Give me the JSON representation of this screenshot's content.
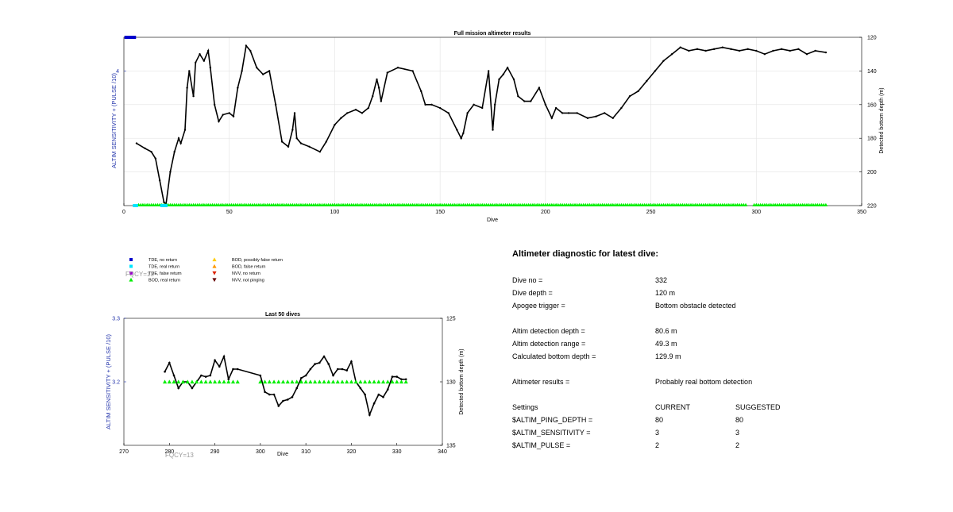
{
  "chart_data": [
    {
      "id": "full",
      "type": "line",
      "title": "Full mission altimeter results",
      "xlabel": "Dive",
      "ylabel_left": "ALTIM SENSITIVITY + (PULSE /10)",
      "ylabel_right": "Detected bottom depth (m)",
      "xlim": [
        0,
        350
      ],
      "xticks": [
        0,
        50,
        100,
        150,
        200,
        250,
        300,
        350
      ],
      "ylim_right": [
        120,
        220
      ],
      "yticks_right": [
        120,
        140,
        160,
        180,
        200,
        220
      ],
      "yticks_left": [
        4
      ],
      "right_axis_reversed": true,
      "grid": true,
      "series": [
        {
          "color": "#000000",
          "marker": "dot",
          "x": [
            6,
            10,
            13,
            15,
            17,
            19,
            20,
            22,
            24,
            26,
            27,
            29,
            30,
            31,
            33,
            34,
            36,
            38,
            40,
            41,
            43,
            45,
            47,
            50,
            52,
            54,
            56,
            58,
            60,
            63,
            66,
            69,
            72,
            75,
            78,
            80,
            81,
            82,
            84,
            88,
            93,
            96,
            100,
            103,
            106,
            110,
            113,
            116,
            118,
            120,
            121,
            122,
            125,
            130,
            137,
            141,
            143,
            146,
            150,
            154,
            158,
            160,
            161,
            163,
            166,
            170,
            173,
            175,
            176,
            178,
            180,
            182,
            185,
            187,
            190,
            193,
            197,
            200,
            203,
            205,
            208,
            211,
            215,
            220,
            224,
            228,
            232,
            236,
            240,
            244,
            248,
            252,
            256,
            260,
            264,
            268,
            272,
            276,
            280,
            284,
            288,
            292,
            296,
            300,
            304,
            308,
            312,
            316,
            320,
            324,
            328,
            333
          ],
          "y": [
            183,
            186,
            188,
            192,
            205,
            218,
            219,
            200,
            188,
            180,
            183,
            175,
            150,
            140,
            155,
            135,
            130,
            134,
            128,
            138,
            160,
            170,
            166,
            165,
            167,
            150,
            140,
            125,
            128,
            138,
            142,
            140,
            160,
            182,
            185,
            175,
            165,
            180,
            183,
            185,
            188,
            182,
            172,
            168,
            165,
            163,
            165,
            162,
            155,
            145,
            150,
            158,
            141,
            138,
            140,
            152,
            160,
            160,
            162,
            165,
            175,
            180,
            177,
            165,
            160,
            162,
            140,
            175,
            160,
            145,
            142,
            138,
            145,
            155,
            158,
            158,
            150,
            160,
            168,
            162,
            165,
            165,
            165,
            168,
            167,
            165,
            168,
            162,
            155,
            152,
            146,
            140,
            134,
            130,
            126,
            128,
            127,
            128,
            127,
            126,
            127,
            128,
            127,
            128,
            130,
            128,
            127,
            128,
            127,
            130,
            128,
            129
          ]
        },
        {
          "name": "BOD, real return",
          "color": "#00ee00",
          "marker": "triangle-up",
          "x_range": [
            7,
            333
          ],
          "y": 220
        },
        {
          "name": "TDE, real return",
          "color": "#00e5ff",
          "marker": "square",
          "x": [
            5,
            6,
            18,
            19,
            20
          ],
          "y": 220
        },
        {
          "name": "TDE, no return",
          "color": "#0000cc",
          "marker": "square",
          "x": [
            1,
            2,
            3,
            4,
            5
          ],
          "y": 120
        }
      ]
    },
    {
      "id": "last50",
      "type": "line",
      "title": "Last 50 dives",
      "xlabel": "Dive",
      "ylabel_left": "ALTIM SENSITIVITY + (PULSE /10)",
      "ylabel_right": "Detected bottom depth (m)",
      "xlim": [
        270,
        340
      ],
      "xticks": [
        270,
        280,
        290,
        300,
        310,
        320,
        330,
        340
      ],
      "ylim_left": [
        3.1,
        3.3
      ],
      "yticks_left": [
        3.3,
        3.2
      ],
      "ylim_right": [
        125,
        135
      ],
      "yticks_right": [
        125,
        130,
        135
      ],
      "right_axis_reversed": true,
      "annotation": "FQCY=13",
      "series": [
        {
          "color": "#000000",
          "marker": "dot",
          "x": [
            279,
            280,
            281,
            282,
            283,
            284,
            285,
            286,
            287,
            288,
            289,
            290,
            291,
            292,
            293,
            294,
            295,
            300,
            301,
            302,
            303,
            304,
            305,
            306,
            307,
            308,
            309,
            310,
            311,
            312,
            313,
            314,
            315,
            316,
            317,
            318,
            319,
            320,
            321,
            322,
            323,
            324,
            325,
            326,
            327,
            328,
            329,
            330,
            331,
            332
          ],
          "y": [
            129.2,
            128.5,
            129.5,
            130.5,
            130.0,
            130.0,
            130.5,
            130.0,
            129.5,
            129.6,
            129.5,
            128.3,
            128.8,
            128.0,
            129.8,
            129.0,
            129.0,
            129.5,
            130.8,
            131.0,
            131.0,
            131.9,
            131.5,
            131.4,
            131.2,
            130.5,
            129.7,
            129.5,
            129.0,
            128.6,
            128.5,
            128.0,
            128.6,
            129.5,
            129.0,
            129.0,
            129.1,
            128.4,
            130.0,
            130.5,
            131.0,
            132.6,
            131.7,
            131.0,
            131.2,
            130.6,
            129.6,
            129.6,
            129.8,
            129.8
          ]
        },
        {
          "name": "BOD, real return",
          "color": "#00ee00",
          "marker": "triangle-up",
          "x_groups": [
            [
              279,
              295
            ],
            [
              300,
              332
            ]
          ],
          "y": 130
        }
      ]
    }
  ],
  "fqcy_overlay": "FQCY=13",
  "legend": [
    {
      "label": "TDE, no return",
      "color": "#0000cc",
      "marker": "square"
    },
    {
      "label": "TDE, real return",
      "color": "#00e5ff",
      "marker": "square"
    },
    {
      "label": "TDE, false return",
      "color": "#9900cc",
      "marker": "square"
    },
    {
      "label": "BOD, real return",
      "color": "#00ee00",
      "marker": "triangle-up"
    },
    {
      "label": "BOD, possibly false return",
      "color": "#ffcc00",
      "marker": "triangle-up"
    },
    {
      "label": "BOD, false return",
      "color": "#ff9900",
      "marker": "triangle-up"
    },
    {
      "label": "NVV, no return",
      "color": "#dd2200",
      "marker": "triangle-down"
    },
    {
      "label": "NVV, not pinging",
      "color": "#660000",
      "marker": "triangle-down"
    }
  ],
  "diagnostic": {
    "title": "Altimeter diagnostic for latest dive:",
    "dive_no_label": "Dive no =",
    "dive_no": "332",
    "dive_depth_label": "Dive depth =",
    "dive_depth": "120 m",
    "apogee_label": "Apogee trigger =",
    "apogee": "Bottom obstacle detected",
    "detection_depth_label": "Altim detection depth =",
    "detection_depth": "80.6 m",
    "detection_range_label": "Altim detection range =",
    "detection_range": "49.3 m",
    "calc_depth_label": "Calculated bottom depth =",
    "calc_depth": "129.9 m",
    "results_label": "Altimeter results =",
    "results": "Probably real bottom detection",
    "settings_label": "Settings",
    "current_label": "CURRENT",
    "suggested_label": "SUGGESTED",
    "ping_depth_label": "$ALTIM_PING_DEPTH =",
    "ping_depth_current": "80",
    "ping_depth_suggested": "80",
    "sensitivity_label": "$ALTIM_SENSITIVITY =",
    "sensitivity_current": "3",
    "sensitivity_suggested": "3",
    "pulse_label": "$ALTIM_PULSE =",
    "pulse_current": "2",
    "pulse_suggested": "2"
  }
}
